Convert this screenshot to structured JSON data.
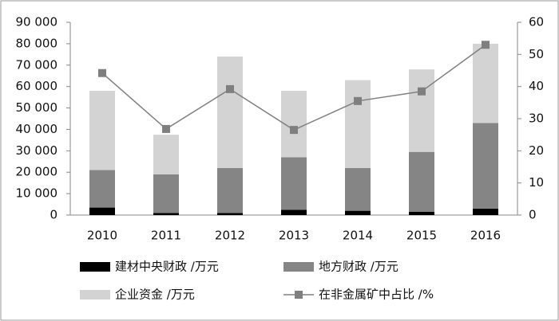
{
  "chart_data": {
    "type": "bar",
    "categories": [
      "2010",
      "2011",
      "2012",
      "2013",
      "2014",
      "2015",
      "2016"
    ],
    "series": [
      {
        "name": "建材中央财政 /万元",
        "color": "#000000",
        "values": [
          3500,
          1000,
          1000,
          2500,
          2000,
          1500,
          3000
        ]
      },
      {
        "name": "地方财政 /万元",
        "color": "#858585",
        "values": [
          17500,
          18000,
          21000,
          24500,
          20000,
          28000,
          40000
        ]
      },
      {
        "name": "企业资金 /万元",
        "color": "#d3d3d3",
        "values": [
          37000,
          18500,
          52000,
          31000,
          41000,
          38500,
          37000
        ]
      },
      {
        "name": "在非金属矿中占比 /%",
        "color": "#7f7f7f",
        "type": "line",
        "axis": "y2",
        "values": [
          44.2,
          26.8,
          39.2,
          26.5,
          35.5,
          38.5,
          53
        ]
      }
    ],
    "ylim": [
      0,
      90000
    ],
    "yticks": [
      0,
      {
        "value": 10000,
        "label": "10 000"
      },
      {
        "value": 20000,
        "label": "20 000"
      },
      {
        "value": 30000,
        "label": "30 000"
      },
      {
        "value": 40000,
        "label": "40 000"
      },
      {
        "value": 50000,
        "label": "50 000"
      },
      {
        "value": 60000,
        "label": "60 000"
      },
      {
        "value": 70000,
        "label": "70 000"
      },
      {
        "value": 80000,
        "label": "80 000"
      },
      {
        "value": 90000,
        "label": "90 000"
      }
    ],
    "y2lim": [
      0,
      60
    ],
    "y2ticks": [
      0,
      10,
      20,
      30,
      40,
      50,
      60
    ],
    "grid": false
  }
}
